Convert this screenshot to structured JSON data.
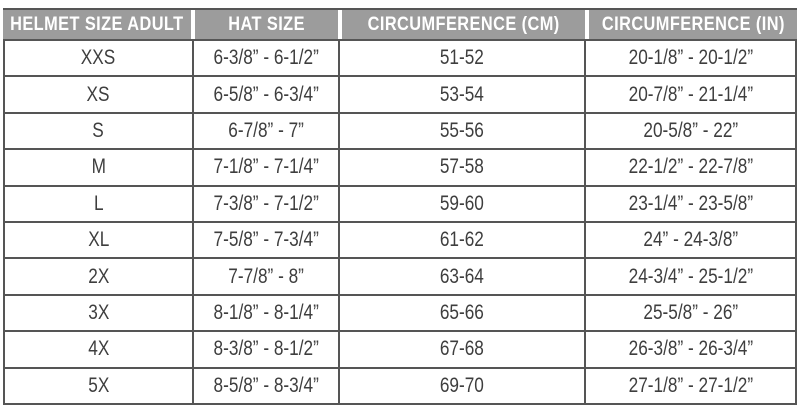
{
  "colors": {
    "header_bg": "#9c9c9c",
    "header_text": "#ffffff",
    "body_text": "#3e3e3e",
    "grid_line": "#555555",
    "background": "#ffffff"
  },
  "chart_data": {
    "type": "table",
    "columns": [
      "HELMET SIZE ADULT",
      "HAT SIZE",
      "CIRCUMFERENCE (CM)",
      "CIRCUMFERENCE (IN)"
    ],
    "rows": [
      [
        "XXS",
        "6-3/8” - 6-1/2”",
        "51-52",
        "20-1/8” - 20-1/2”"
      ],
      [
        "XS",
        "6-5/8” - 6-3/4”",
        "53-54",
        "20-7/8” - 21-1/4”"
      ],
      [
        "S",
        "6-7/8” - 7”",
        "55-56",
        "20-5/8” - 22”"
      ],
      [
        "M",
        "7-1/8” - 7-1/4”",
        "57-58",
        "22-1/2” - 22-7/8”"
      ],
      [
        "L",
        "7-3/8” - 7-1/2”",
        "59-60",
        "23-1/4” - 23-5/8”"
      ],
      [
        "XL",
        "7-5/8” - 7-3/4”",
        "61-62",
        "24” - 24-3/8”"
      ],
      [
        "2X",
        "7-7/8” - 8”",
        "63-64",
        "24-3/4” - 25-1/2”"
      ],
      [
        "3X",
        "8-1/8” - 8-1/4”",
        "65-66",
        "25-5/8” - 26”"
      ],
      [
        "4X",
        "8-3/8” - 8-1/2”",
        "67-68",
        "26-3/8” - 26-3/4”"
      ],
      [
        "5X",
        "8-5/8” - 8-3/4”",
        "69-70",
        "27-1/8” - 27-1/2”"
      ]
    ]
  }
}
